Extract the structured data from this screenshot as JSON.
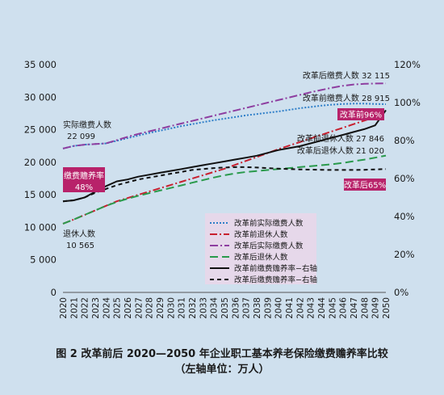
{
  "figure": {
    "caption": "图 2   改革前后 2020—2050 年企业职工基本养老保险缴费赡养率比较",
    "caption_sub": "（左轴单位：万人）",
    "background_color": "#cfe0ee"
  },
  "chart_data": {
    "type": "line",
    "x": [
      2020,
      2021,
      2022,
      2023,
      2024,
      2025,
      2026,
      2027,
      2028,
      2029,
      2030,
      2031,
      2032,
      2033,
      2034,
      2035,
      2036,
      2037,
      2038,
      2039,
      2040,
      2041,
      2042,
      2043,
      2044,
      2045,
      2046,
      2047,
      2048,
      2049,
      2050
    ],
    "x_tick_labels": [
      "2020",
      "2021",
      "2022",
      "2023",
      "2024",
      "2025",
      "2026",
      "2027",
      "2028",
      "2029",
      "2030",
      "2031",
      "2032",
      "2033",
      "2034",
      "2035",
      "2036",
      "2037",
      "2038",
      "2039",
      "2040",
      "2041",
      "2042",
      "2043",
      "2044",
      "2045",
      "2046",
      "2047",
      "2048",
      "2049",
      "2050"
    ],
    "y_left_range": [
      0,
      35000
    ],
    "y_left_ticks": [
      0,
      5000,
      10000,
      15000,
      20000,
      25000,
      30000,
      35000
    ],
    "y_left_tick_labels": [
      "0",
      "5 000",
      "10 000",
      "15 000",
      "20 000",
      "25 000",
      "30 000",
      "35 000"
    ],
    "y_right_range": [
      0,
      120
    ],
    "y_right_ticks": [
      0,
      20,
      40,
      60,
      80,
      100,
      120
    ],
    "y_right_tick_labels": [
      "0%",
      "20%",
      "40%",
      "60%",
      "80%",
      "100%",
      "120%"
    ],
    "grid": false,
    "legend_position": "bottom-right",
    "series": [
      {
        "name": "改革前实际缴费人数",
        "axis": "left",
        "color": "#2e7ec8",
        "dash": "2,2",
        "values": [
          22099,
          22500,
          22700,
          22800,
          22900,
          23300,
          23700,
          24100,
          24500,
          24850,
          25200,
          25550,
          25850,
          26150,
          26450,
          26700,
          26950,
          27200,
          27400,
          27600,
          27800,
          28050,
          28300,
          28500,
          28700,
          28850,
          28950,
          29000,
          29000,
          28950,
          28915
        ]
      },
      {
        "name": "改革前退休人数",
        "axis": "left",
        "color": "#c8202f",
        "dash": "9,3,2,3",
        "values": [
          10565,
          11200,
          11900,
          12600,
          13300,
          14000,
          14500,
          15000,
          15500,
          16000,
          16500,
          17000,
          17500,
          18000,
          18500,
          19000,
          19600,
          20200,
          20800,
          21400,
          22000,
          22550,
          23100,
          23650,
          24200,
          24750,
          25300,
          25850,
          26400,
          26950,
          27846
        ]
      },
      {
        "name": "改革后实际缴费人数",
        "axis": "left",
        "color": "#8e3ea0",
        "dash": "10,3,2,3",
        "values": [
          22099,
          22500,
          22700,
          22800,
          22900,
          23400,
          23900,
          24350,
          24750,
          25150,
          25550,
          25950,
          26350,
          26750,
          27150,
          27550,
          27950,
          28350,
          28750,
          29150,
          29550,
          29950,
          30350,
          30750,
          31100,
          31450,
          31750,
          31950,
          32050,
          32100,
          32115
        ]
      },
      {
        "name": "改革后退休人数",
        "axis": "left",
        "color": "#2a9a4c",
        "dash": "10,5",
        "values": [
          10565,
          11200,
          11900,
          12600,
          13300,
          13900,
          14400,
          14850,
          15250,
          15650,
          16050,
          16450,
          16850,
          17250,
          17650,
          18000,
          18300,
          18500,
          18650,
          18800,
          18950,
          19100,
          19250,
          19400,
          19550,
          19700,
          19900,
          20150,
          20400,
          20700,
          21020
        ]
      },
      {
        "name": "改革前缴费赡养率−右轴",
        "axis": "right",
        "color": "#111111",
        "dash": "",
        "values": [
          48,
          48.5,
          50,
          53,
          56,
          58.5,
          59.5,
          61,
          62,
          63,
          64,
          65,
          66,
          67,
          68,
          69,
          70,
          71,
          72,
          73.5,
          75,
          76,
          77,
          78.5,
          80,
          81.5,
          83,
          84.5,
          86,
          88,
          96
        ]
      },
      {
        "name": "改革后缴费赡养率−右轴",
        "axis": "right",
        "color": "#111111",
        "dash": "5,4",
        "values": [
          48,
          48.5,
          50,
          52.5,
          54.5,
          56.5,
          58,
          59.5,
          60.5,
          61.5,
          62.5,
          63.5,
          64.5,
          65,
          65.5,
          65.8,
          66,
          66,
          65.8,
          65.5,
          65.2,
          65,
          64.8,
          64.7,
          64.6,
          64.5,
          64.5,
          64.5,
          64.6,
          64.8,
          65
        ]
      }
    ],
    "annotations": [
      {
        "id": "ann-actual-label",
        "text": "实际缴费人数",
        "style": "plain"
      },
      {
        "id": "ann-actual-value",
        "text": "22 099",
        "style": "plain"
      },
      {
        "id": "ann-retire-label",
        "text": "退休人数",
        "style": "plain"
      },
      {
        "id": "ann-retire-value",
        "text": "10 565",
        "style": "plain"
      },
      {
        "id": "ann-ratio-box",
        "text": "缴费赡养率",
        "text2": "48%",
        "style": "box",
        "color": "#b8226a"
      },
      {
        "id": "ann-after-contrib",
        "text": "改革后缴费人数 32 115",
        "style": "plain"
      },
      {
        "id": "ann-before-contrib",
        "text": "改革前缴费人数 28 915",
        "style": "plain"
      },
      {
        "id": "ann-before-96",
        "text": "改革前96%",
        "style": "box",
        "color": "#b8226a"
      },
      {
        "id": "ann-before-retire",
        "text": "改革前退休人数 27 846",
        "style": "plain"
      },
      {
        "id": "ann-after-retire",
        "text": "改革后退休人数 21 020",
        "style": "plain"
      },
      {
        "id": "ann-after-65",
        "text": "改革后65%",
        "style": "box",
        "color": "#b8226a"
      }
    ],
    "legend_background": "#e6d8ea"
  }
}
